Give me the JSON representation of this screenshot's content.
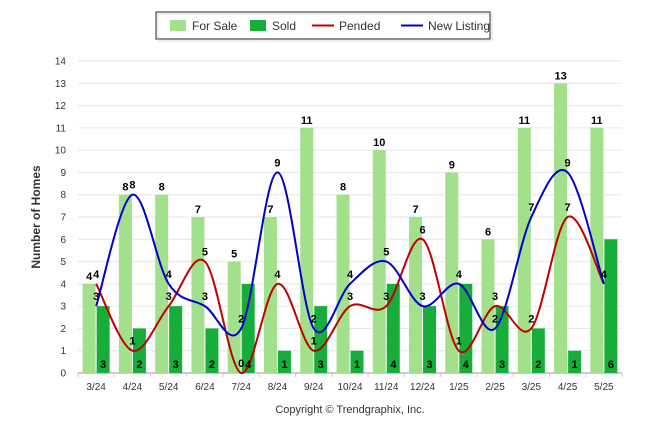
{
  "chart_data": {
    "type": "bar",
    "ylabel": "Number of Homes",
    "credit": "Copyright © Trendgraphix, Inc.",
    "ylim": [
      0,
      14
    ],
    "yticks": [
      0,
      1,
      2,
      3,
      4,
      5,
      6,
      7,
      8,
      9,
      10,
      11,
      12,
      13,
      14
    ],
    "grid": true,
    "legend_position": "top",
    "categories": [
      "3/24",
      "4/24",
      "5/24",
      "6/24",
      "7/24",
      "8/24",
      "9/24",
      "10/24",
      "11/24",
      "12/24",
      "1/25",
      "2/25",
      "3/25",
      "4/25",
      "5/25"
    ],
    "series": [
      {
        "name": "For Sale",
        "kind": "bar",
        "color": "#a3e08c",
        "values": [
          4,
          8,
          8,
          7,
          5,
          7,
          11,
          8,
          10,
          7,
          9,
          6,
          11,
          13,
          11
        ]
      },
      {
        "name": "Sold",
        "kind": "bar",
        "color": "#17ad3b",
        "values": [
          3,
          2,
          3,
          2,
          4,
          1,
          3,
          1,
          4,
          3,
          4,
          3,
          2,
          1,
          6
        ]
      },
      {
        "name": "Pended",
        "kind": "line",
        "color": "#c00000",
        "values": [
          4,
          1,
          3,
          5,
          0,
          4,
          1,
          3,
          3,
          6,
          1,
          3,
          2,
          7,
          4
        ]
      },
      {
        "name": "New Listing",
        "kind": "line",
        "color": "#0000cc",
        "values": [
          3,
          8,
          4,
          3,
          2,
          9,
          2,
          4,
          5,
          3,
          4,
          2,
          7,
          9,
          4
        ]
      }
    ]
  }
}
